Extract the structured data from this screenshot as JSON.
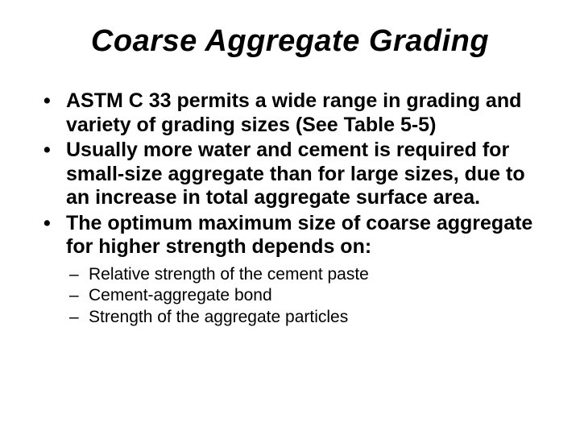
{
  "title": "Coarse Aggregate Grading",
  "bullets": [
    "ASTM C 33 permits a wide range in grading and variety of grading sizes (See Table 5-5)",
    "Usually more water and cement is required for small-size aggregate than for large sizes, due to an increase in total aggregate surface area.",
    "The optimum maximum size of coarse aggregate for higher strength depends on:"
  ],
  "subBullets": [
    "Relative strength of the cement paste",
    "Cement-aggregate bond",
    "Strength of the aggregate particles"
  ],
  "colors": {
    "background": "#ffffff",
    "text": "#000000"
  },
  "typography": {
    "title_fontsize": 38,
    "title_weight": "bold",
    "title_style": "italic",
    "bullet_fontsize": 25,
    "bullet_weight": "bold",
    "subbullet_fontsize": 21,
    "subbullet_weight": "normal",
    "font_family": "Arial"
  }
}
